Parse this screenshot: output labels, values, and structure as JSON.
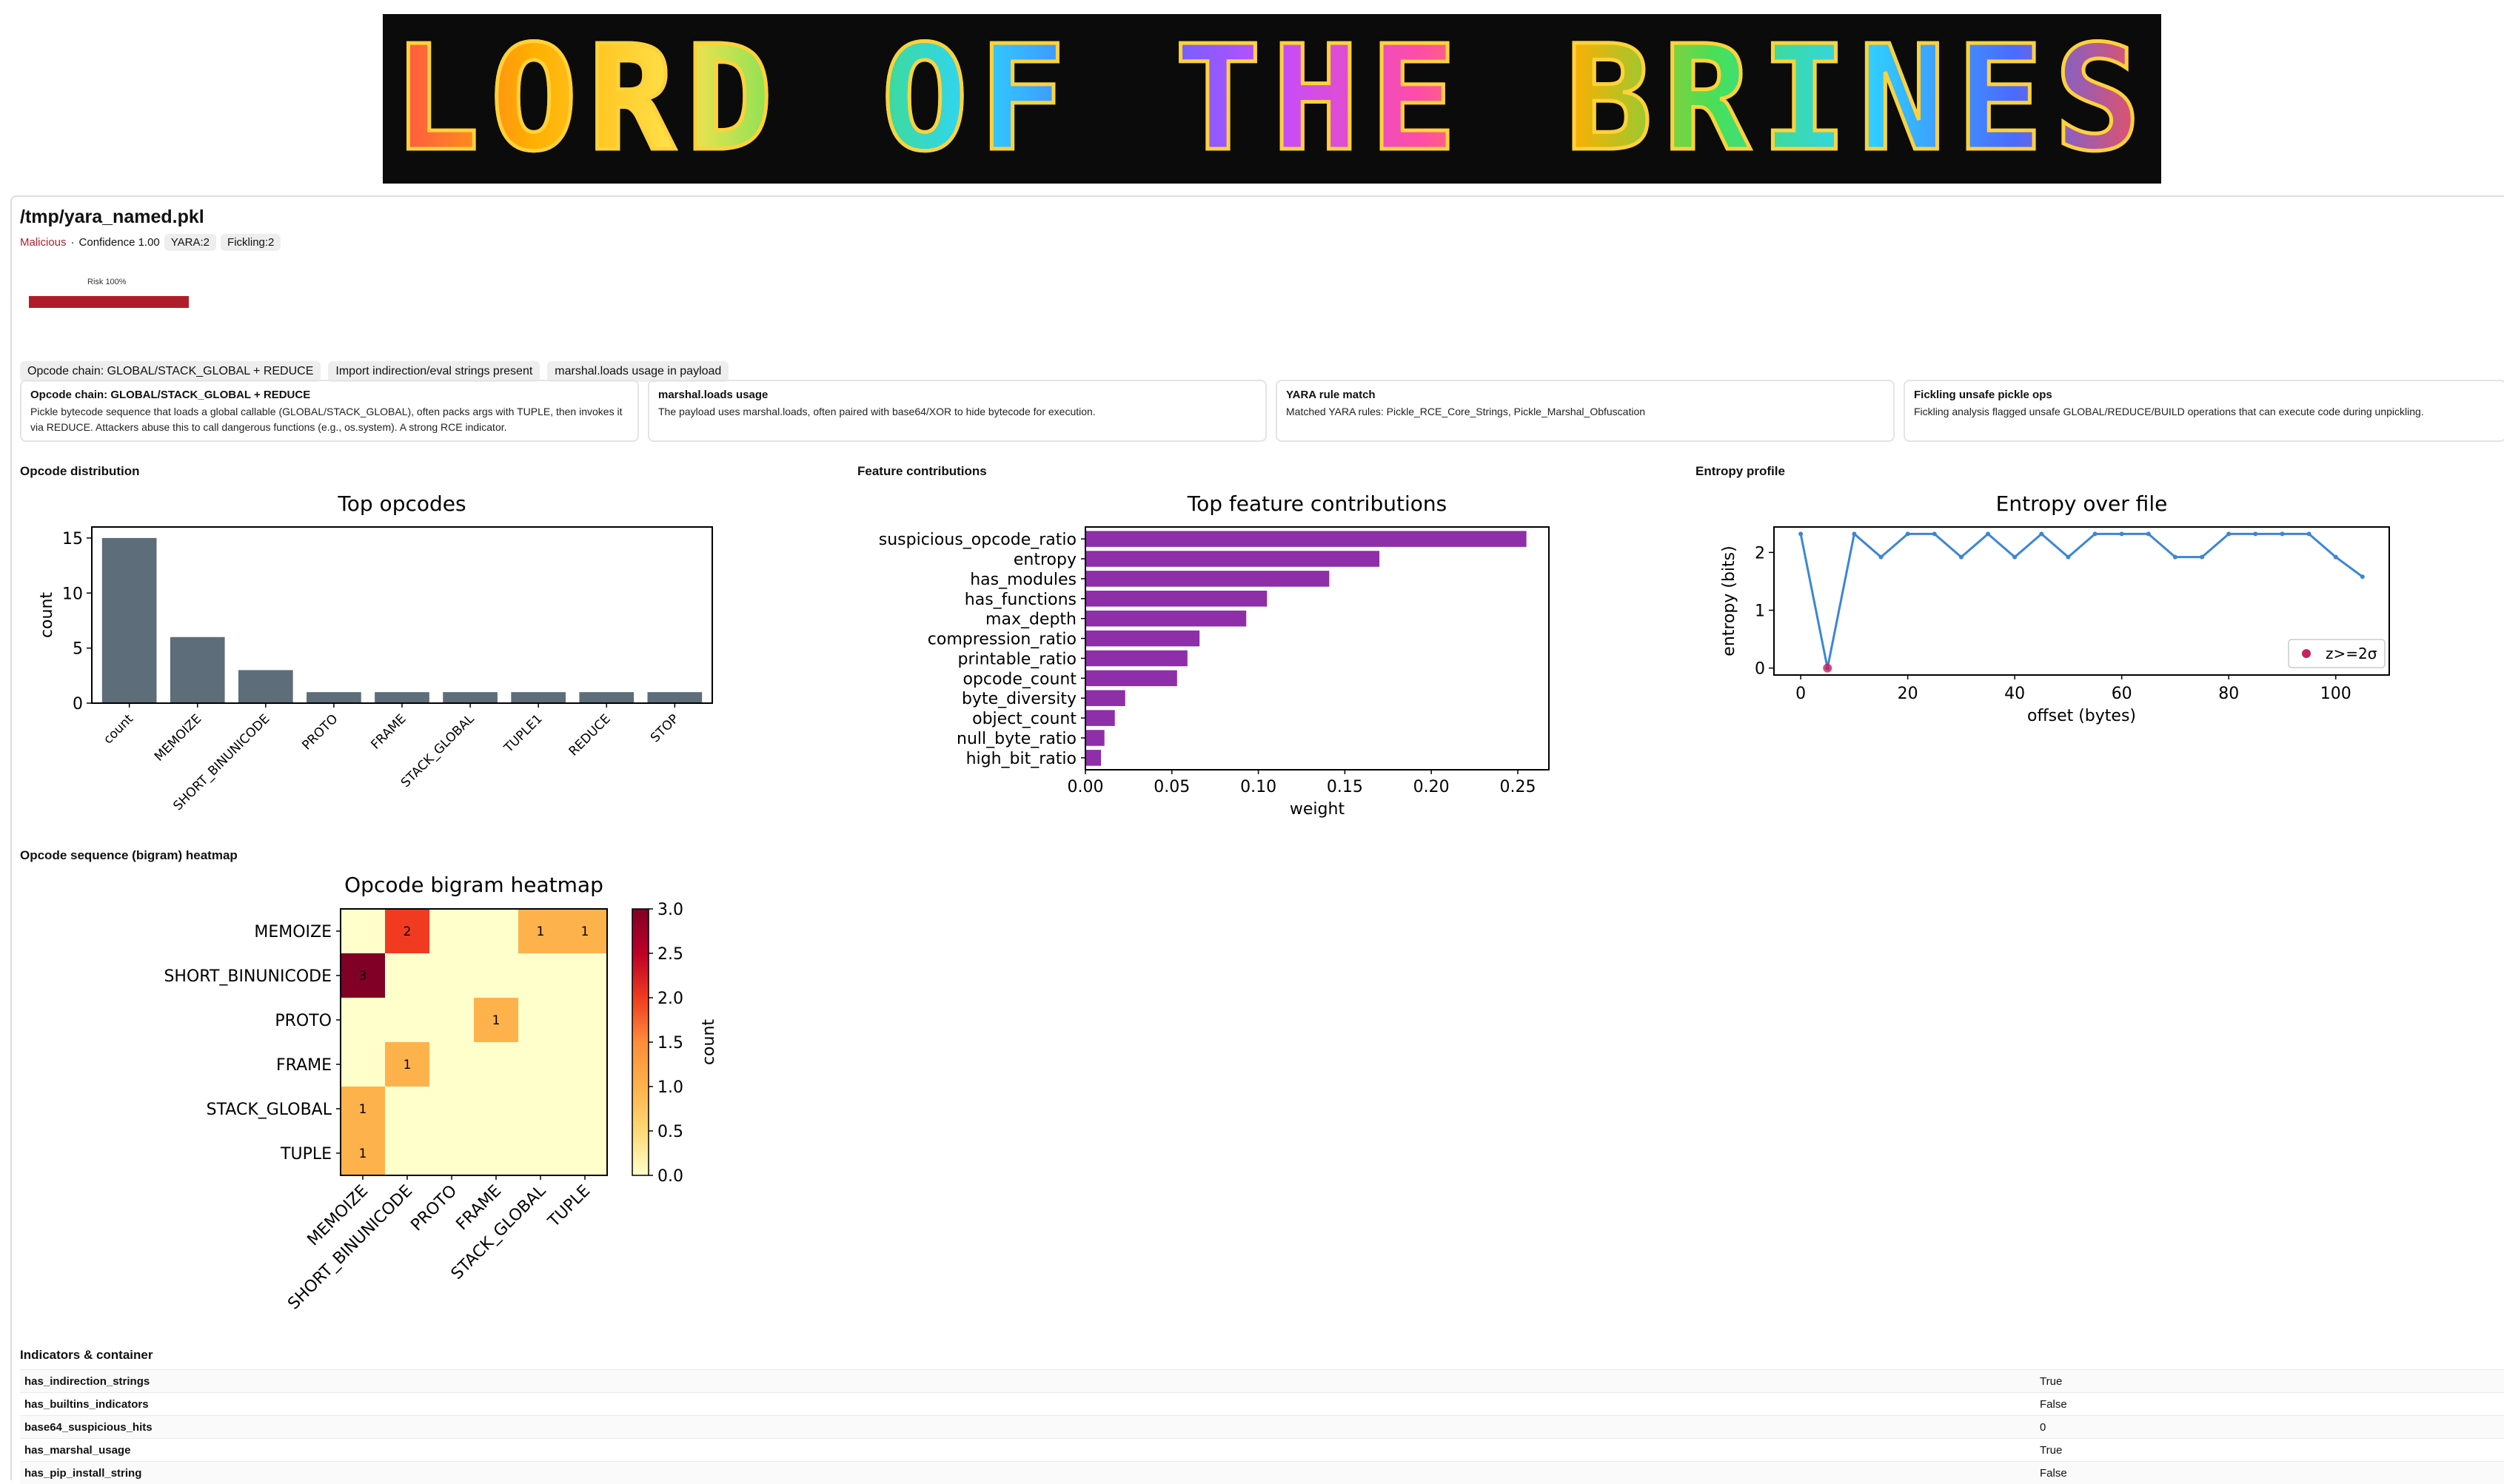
{
  "banner": {
    "title": "LORD OF THE BRINES"
  },
  "report": {
    "file_path": "/tmp/yara_named.pkl",
    "verdict": "Malicious",
    "separator": "·",
    "confidence_text": "Confidence 1.00",
    "chips": [
      "YARA:2",
      "Fickling:2"
    ],
    "risk_label": "Risk 100%",
    "risk_fraction": 1.0,
    "colors": {
      "malicious": "#b0202a",
      "risk_bar": "#b01d2a"
    }
  },
  "tags": [
    "Opcode chain: GLOBAL/STACK_GLOBAL + REDUCE",
    "Import indirection/eval strings present",
    "marshal.loads usage in payload"
  ],
  "cards": [
    {
      "title": "Opcode chain: GLOBAL/STACK_GLOBAL + REDUCE",
      "body": "Pickle bytecode sequence that loads a global callable (GLOBAL/STACK_GLOBAL), often packs args with TUPLE, then invokes it via REDUCE. Attackers abuse this to call dangerous functions (e.g., os.system). A strong RCE indicator."
    },
    {
      "title": "marshal.loads usage",
      "body": "The payload uses marshal.loads, often paired with base64/XOR to hide bytecode for execution."
    },
    {
      "title": "YARA rule match",
      "body": "Matched YARA rules: Pickle_RCE_Core_Strings, Pickle_Marshal_Obfuscation"
    },
    {
      "title": "Fickling unsafe pickle ops",
      "body": "Fickling analysis flagged unsafe GLOBAL/REDUCE/BUILD operations that can execute code during unpickling."
    }
  ],
  "sections": {
    "opcode_distribution": "Opcode distribution",
    "feature_contributions": "Feature contributions",
    "entropy_profile": "Entropy profile",
    "bigram_heatmap": "Opcode sequence (bigram) heatmap",
    "indicators": "Indicators & container"
  },
  "chart_data": [
    {
      "type": "bar",
      "title": "Top opcodes",
      "xlabel": "",
      "ylabel": "count",
      "categories": [
        "count",
        "MEMOIZE",
        "SHORT_BINUNICODE",
        "PROTO",
        "FRAME",
        "STACK_GLOBAL",
        "TUPLE1",
        "REDUCE",
        "STOP"
      ],
      "values": [
        15,
        6,
        3,
        1,
        1,
        1,
        1,
        1,
        1
      ],
      "ylim": [
        0,
        16
      ],
      "yticks": [
        0,
        5,
        10,
        15
      ],
      "color": "#5d6d7a"
    },
    {
      "type": "bar",
      "orientation": "horizontal",
      "title": "Top feature contributions",
      "xlabel": "weight",
      "ylabel": "",
      "categories": [
        "suspicious_opcode_ratio",
        "entropy",
        "has_modules",
        "has_functions",
        "max_depth",
        "compression_ratio",
        "printable_ratio",
        "opcode_count",
        "byte_diversity",
        "object_count",
        "null_byte_ratio",
        "high_bit_ratio"
      ],
      "values": [
        0.255,
        0.17,
        0.141,
        0.105,
        0.093,
        0.066,
        0.059,
        0.053,
        0.023,
        0.017,
        0.011,
        0.009
      ],
      "xlim": [
        0,
        0.268
      ],
      "xticks": [
        "0.00",
        "0.05",
        "0.10",
        "0.15",
        "0.20",
        "0.25"
      ],
      "color": "#8e2ea8"
    },
    {
      "type": "line",
      "title": "Entropy over file",
      "xlabel": "offset (bytes)",
      "ylabel": "entropy (bits)",
      "x": [
        0,
        5,
        10,
        15,
        20,
        25,
        30,
        35,
        40,
        45,
        50,
        55,
        60,
        65,
        70,
        75,
        80,
        85,
        90,
        95,
        100,
        105
      ],
      "y": [
        2.32,
        0.0,
        2.32,
        1.92,
        2.32,
        2.32,
        1.92,
        2.32,
        1.92,
        2.32,
        1.92,
        2.32,
        2.32,
        2.32,
        1.92,
        1.92,
        2.32,
        2.32,
        2.32,
        2.32,
        1.92,
        1.58
      ],
      "outliers": [
        {
          "x": 5,
          "y": 0.0
        }
      ],
      "legend": [
        "z>=2σ"
      ],
      "legend_position": "lower-right",
      "xlim": [
        -5,
        110
      ],
      "ylim": [
        -0.12,
        2.44
      ],
      "xticks": [
        0,
        20,
        40,
        60,
        80,
        100
      ],
      "yticks": [
        0,
        1,
        2
      ],
      "color": "#3b86d6",
      "outlier_color": "#c8215f"
    },
    {
      "type": "heatmap",
      "title": "Opcode bigram heatmap",
      "rows": [
        "MEMOIZE",
        "SHORT_BINUNICODE",
        "PROTO",
        "FRAME",
        "STACK_GLOBAL",
        "TUPLE"
      ],
      "cols": [
        "MEMOIZE",
        "SHORT_BINUNICODE",
        "PROTO",
        "FRAME",
        "STACK_GLOBAL",
        "TUPLE"
      ],
      "matrix": [
        [
          0,
          2,
          0,
          0,
          1,
          1
        ],
        [
          3,
          0,
          0,
          0,
          0,
          0
        ],
        [
          0,
          0,
          0,
          1,
          0,
          0
        ],
        [
          0,
          1,
          0,
          0,
          0,
          0
        ],
        [
          1,
          0,
          0,
          0,
          0,
          0
        ],
        [
          1,
          0,
          0,
          0,
          0,
          0
        ]
      ],
      "colorbar_label": "count",
      "colorbar_range": [
        0.0,
        3.0
      ],
      "colorbar_ticks": [
        "0.0",
        "0.5",
        "1.0",
        "1.5",
        "2.0",
        "2.5",
        "3.0"
      ],
      "colormap": [
        "#ffffcc",
        "#fed976",
        "#feb24c",
        "#fd8d3c",
        "#f03b20",
        "#bd0026",
        "#800026"
      ]
    }
  ],
  "indicators": [
    {
      "key": "has_indirection_strings",
      "value": "True"
    },
    {
      "key": "has_builtins_indicators",
      "value": "False"
    },
    {
      "key": "base64_suspicious_hits",
      "value": "0"
    },
    {
      "key": "has_marshal_usage",
      "value": "True"
    },
    {
      "key": "has_pip_install_string",
      "value": "False"
    }
  ]
}
